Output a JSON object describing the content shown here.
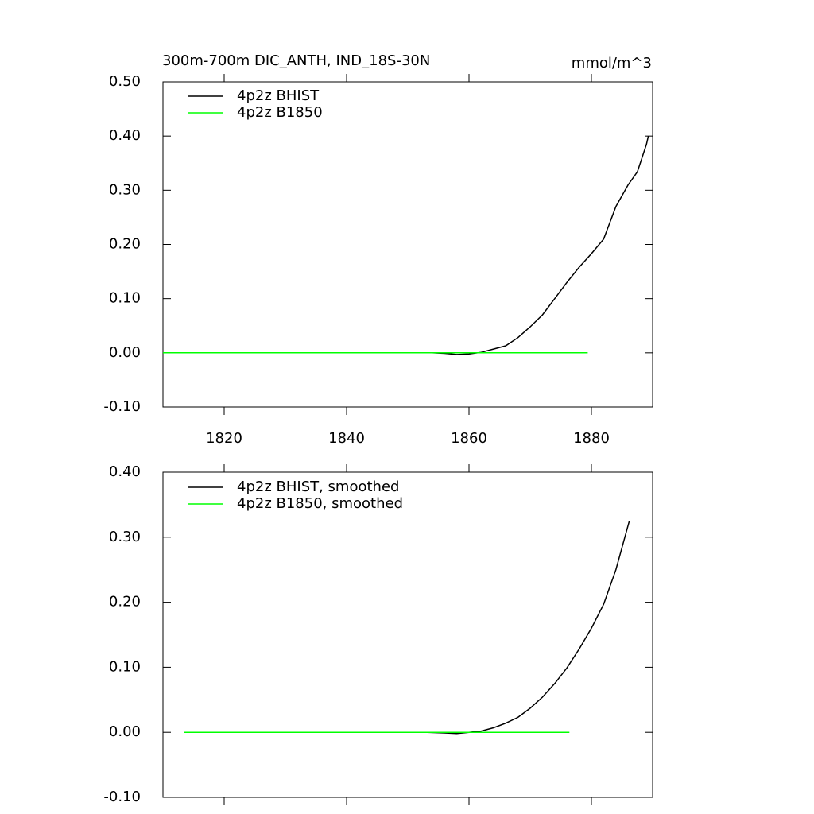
{
  "chart_data": [
    {
      "type": "line",
      "title": "300m-700m DIC_ANTH, IND_18S-30N",
      "units": "mmol/m^3",
      "xlim": [
        1810,
        1890
      ],
      "xticks": [
        1820,
        1840,
        1860,
        1880
      ],
      "ylim": [
        -0.1,
        0.5
      ],
      "yticks": [
        {
          "value": -0.1,
          "label": "-0.10"
        },
        {
          "value": 0,
          "label": "0.00"
        },
        {
          "value": 0.1,
          "label": "0.10"
        },
        {
          "value": 0.2,
          "label": "0.20"
        },
        {
          "value": 0.3,
          "label": "0.30"
        },
        {
          "value": 0.4,
          "label": "0.40"
        },
        {
          "value": 0.5,
          "label": "0.50"
        }
      ],
      "xtick_labels": true,
      "series": [
        {
          "name": "4p2z BHIST",
          "color": "#000000",
          "x": [
            1850,
            1854,
            1856,
            1858,
            1860,
            1862,
            1864,
            1866,
            1868,
            1870,
            1872,
            1874,
            1876,
            1878,
            1880,
            1882,
            1884,
            1886,
            1887.5,
            1889,
            1889.3
          ],
          "values": [
            0,
            0,
            -0.001,
            -0.003,
            -0.002,
            0.001,
            0.007,
            0.013,
            0.028,
            0.048,
            0.07,
            0.1,
            0.13,
            0.158,
            0.183,
            0.21,
            0.27,
            0.31,
            0.334,
            0.385,
            0.4
          ]
        },
        {
          "name": "4p2z B1850",
          "color": "#00ff00",
          "x": [
            1810,
            1879.4
          ],
          "values": [
            0,
            0
          ]
        }
      ]
    },
    {
      "type": "line",
      "xlim": [
        1810,
        1890
      ],
      "xticks": [
        1820,
        1840,
        1860,
        1880
      ],
      "ylim": [
        -0.1,
        0.4
      ],
      "yticks": [
        {
          "value": -0.1,
          "label": "-0.10"
        },
        {
          "value": 0,
          "label": "0.00"
        },
        {
          "value": 0.1,
          "label": "0.10"
        },
        {
          "value": 0.2,
          "label": "0.20"
        },
        {
          "value": 0.3,
          "label": "0.30"
        },
        {
          "value": 0.4,
          "label": "0.40"
        }
      ],
      "xtick_labels": false,
      "series": [
        {
          "name": "4p2z BHIST, smoothed",
          "color": "#000000",
          "x": [
            1853.2,
            1856,
            1858,
            1860,
            1862,
            1864,
            1866,
            1868,
            1870,
            1872,
            1874,
            1876,
            1878,
            1880,
            1882,
            1884,
            1886.2
          ],
          "values": [
            0,
            -0.001,
            -0.002,
            0,
            0.002,
            0.007,
            0.014,
            0.023,
            0.037,
            0.054,
            0.075,
            0.099,
            0.128,
            0.16,
            0.197,
            0.25,
            0.325
          ]
        },
        {
          "name": "4p2z B1850, smoothed",
          "color": "#00ff00",
          "x": [
            1813.5,
            1876.4
          ],
          "values": [
            0,
            0
          ]
        }
      ]
    }
  ]
}
